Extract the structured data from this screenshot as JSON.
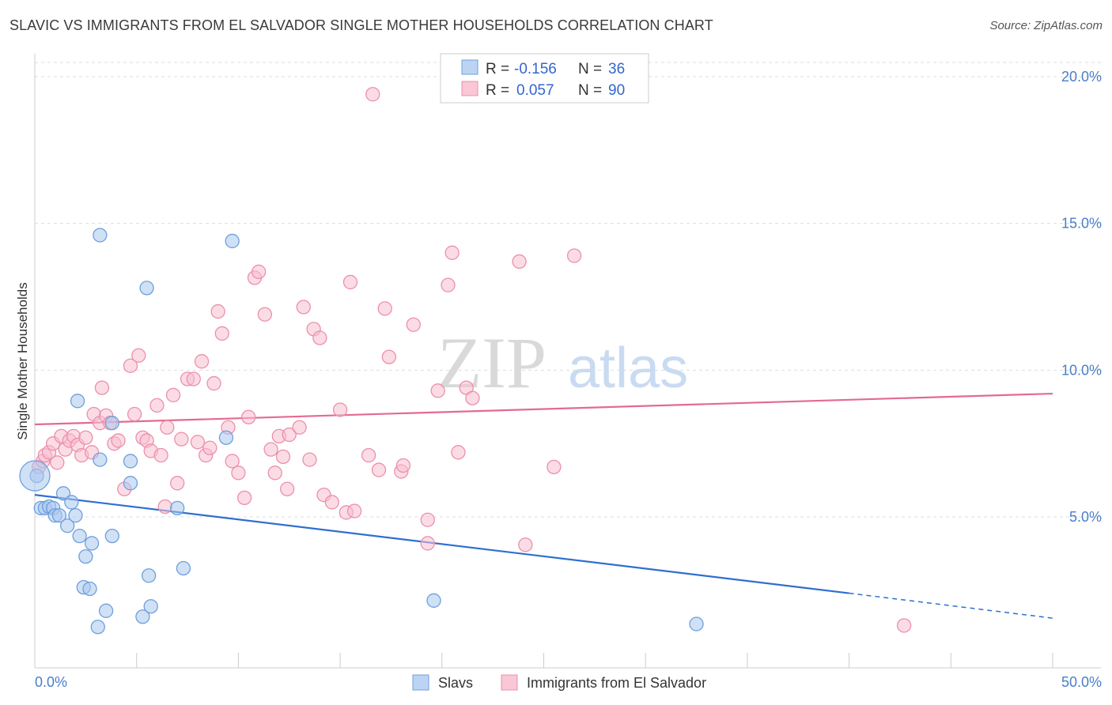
{
  "header": {
    "title": "SLAVIC VS IMMIGRANTS FROM EL SALVADOR SINGLE MOTHER HOUSEHOLDS CORRELATION CHART",
    "source": "Source: ZipAtlas.com"
  },
  "watermark": {
    "zip": "ZIP",
    "atlas": "atlas"
  },
  "legend_box": {
    "rows": [
      {
        "r_label": "R =",
        "r_value": "-0.156",
        "n_label": "N =",
        "n_value": "36"
      },
      {
        "r_label": "R =",
        "r_value": "0.057",
        "n_label": "N =",
        "n_value": "90"
      }
    ]
  },
  "bottom_legend": {
    "series1": "Slavs",
    "series2": "Immigrants from El Salvador"
  },
  "colors": {
    "slavs_fill": "#a9c8ef",
    "slavs_stroke": "#6f9fdc",
    "slavs_line": "#2e6fd0",
    "salv_fill": "#f7c0d0",
    "salv_stroke": "#ec8fad",
    "salv_line": "#e36a92",
    "tick_text": "#4a7ec9",
    "grid": "#dddddd"
  },
  "chart_data": {
    "type": "scatter",
    "title": "SLAVIC VS IMMIGRANTS FROM EL SALVADOR SINGLE MOTHER HOUSEHOLDS CORRELATION CHART",
    "xlabel": "",
    "ylabel": "Single Mother Households",
    "xlim": [
      0,
      50
    ],
    "ylim": [
      0,
      20.5
    ],
    "x_tick_labels": [
      "0.0%",
      "50.0%"
    ],
    "y_tick_labels": [
      "5.0%",
      "10.0%",
      "15.0%",
      "20.0%"
    ],
    "y_ticks": [
      5,
      10,
      15,
      20
    ],
    "grid": true,
    "legend_position": "top-center",
    "series": [
      {
        "name": "Slavs",
        "r": -0.156,
        "n": 36,
        "trend": {
          "x0": 0,
          "y0": 5.75,
          "x1": 40,
          "y1": 2.4,
          "dash_to_x": 50,
          "dash_to_y": 1.55
        },
        "points": [
          [
            0.1,
            6.4
          ],
          [
            0.3,
            5.3
          ],
          [
            0.5,
            5.3
          ],
          [
            0.7,
            5.35
          ],
          [
            0.9,
            5.3
          ],
          [
            1.0,
            5.05
          ],
          [
            1.2,
            5.05
          ],
          [
            1.4,
            5.8
          ],
          [
            1.6,
            4.7
          ],
          [
            1.8,
            5.5
          ],
          [
            2.0,
            5.05
          ],
          [
            2.1,
            8.95
          ],
          [
            2.2,
            4.35
          ],
          [
            2.5,
            3.65
          ],
          [
            2.8,
            4.1
          ],
          [
            3.2,
            14.6
          ],
          [
            3.2,
            6.95
          ],
          [
            2.4,
            2.6
          ],
          [
            2.7,
            2.55
          ],
          [
            3.5,
            1.8
          ],
          [
            3.1,
            1.25
          ],
          [
            3.8,
            8.2
          ],
          [
            3.8,
            4.35
          ],
          [
            4.7,
            6.9
          ],
          [
            4.7,
            6.15
          ],
          [
            5.3,
            1.6
          ],
          [
            5.6,
            3.0
          ],
          [
            5.7,
            1.95
          ],
          [
            5.5,
            12.8
          ],
          [
            7.0,
            5.3
          ],
          [
            7.3,
            3.25
          ],
          [
            9.4,
            7.7
          ],
          [
            9.7,
            14.4
          ],
          [
            19.6,
            2.15
          ],
          [
            32.5,
            1.35
          ],
          [
            0.0,
            6.4
          ]
        ]
      },
      {
        "name": "Immigrants from El Salvador",
        "r": 0.057,
        "n": 90,
        "trend": {
          "x0": 0,
          "y0": 8.15,
          "x1": 50,
          "y1": 9.2
        },
        "points": [
          [
            0.2,
            6.7
          ],
          [
            0.4,
            6.9
          ],
          [
            0.5,
            7.1
          ],
          [
            0.7,
            7.2
          ],
          [
            0.9,
            7.5
          ],
          [
            1.1,
            6.85
          ],
          [
            1.3,
            7.75
          ],
          [
            1.5,
            7.3
          ],
          [
            1.7,
            7.6
          ],
          [
            1.9,
            7.75
          ],
          [
            2.1,
            7.45
          ],
          [
            2.3,
            7.1
          ],
          [
            2.5,
            7.7
          ],
          [
            2.8,
            7.2
          ],
          [
            2.9,
            8.5
          ],
          [
            3.2,
            8.2
          ],
          [
            3.3,
            9.4
          ],
          [
            3.5,
            8.45
          ],
          [
            3.7,
            8.2
          ],
          [
            3.9,
            7.5
          ],
          [
            4.1,
            7.6
          ],
          [
            4.4,
            5.95
          ],
          [
            4.7,
            10.15
          ],
          [
            4.9,
            8.5
          ],
          [
            5.1,
            10.5
          ],
          [
            5.3,
            7.7
          ],
          [
            5.5,
            7.6
          ],
          [
            5.7,
            7.25
          ],
          [
            6.0,
            8.8
          ],
          [
            6.2,
            7.1
          ],
          [
            6.4,
            5.35
          ],
          [
            6.5,
            8.05
          ],
          [
            6.8,
            9.15
          ],
          [
            7.0,
            6.15
          ],
          [
            7.2,
            7.65
          ],
          [
            7.5,
            9.7
          ],
          [
            7.8,
            9.7
          ],
          [
            8.0,
            7.55
          ],
          [
            8.2,
            10.3
          ],
          [
            8.4,
            7.1
          ],
          [
            8.6,
            7.35
          ],
          [
            8.8,
            9.55
          ],
          [
            9.0,
            12.0
          ],
          [
            9.2,
            11.25
          ],
          [
            9.5,
            8.05
          ],
          [
            9.7,
            6.9
          ],
          [
            10.0,
            6.5
          ],
          [
            10.3,
            5.65
          ],
          [
            10.5,
            8.4
          ],
          [
            10.8,
            13.15
          ],
          [
            11.0,
            13.35
          ],
          [
            11.3,
            11.9
          ],
          [
            11.6,
            7.3
          ],
          [
            11.8,
            6.5
          ],
          [
            12.0,
            7.75
          ],
          [
            12.2,
            7.05
          ],
          [
            12.4,
            5.95
          ],
          [
            12.5,
            7.8
          ],
          [
            13.0,
            8.05
          ],
          [
            13.2,
            12.15
          ],
          [
            13.5,
            6.95
          ],
          [
            13.7,
            11.4
          ],
          [
            14.0,
            11.1
          ],
          [
            14.2,
            5.75
          ],
          [
            14.6,
            5.5
          ],
          [
            15.0,
            8.65
          ],
          [
            15.3,
            5.15
          ],
          [
            15.5,
            13.0
          ],
          [
            15.7,
            5.2
          ],
          [
            16.4,
            7.1
          ],
          [
            16.6,
            19.4
          ],
          [
            16.9,
            6.6
          ],
          [
            17.2,
            12.1
          ],
          [
            17.4,
            10.45
          ],
          [
            18.0,
            6.55
          ],
          [
            18.1,
            6.75
          ],
          [
            18.6,
            11.55
          ],
          [
            19.3,
            4.9
          ],
          [
            19.3,
            4.1
          ],
          [
            19.8,
            9.3
          ],
          [
            20.3,
            12.9
          ],
          [
            20.5,
            14.0
          ],
          [
            20.8,
            7.2
          ],
          [
            21.2,
            9.4
          ],
          [
            21.5,
            9.05
          ],
          [
            23.8,
            13.7
          ],
          [
            24.1,
            4.05
          ],
          [
            25.5,
            6.7
          ],
          [
            26.5,
            13.9
          ],
          [
            42.7,
            1.3
          ]
        ]
      }
    ]
  }
}
